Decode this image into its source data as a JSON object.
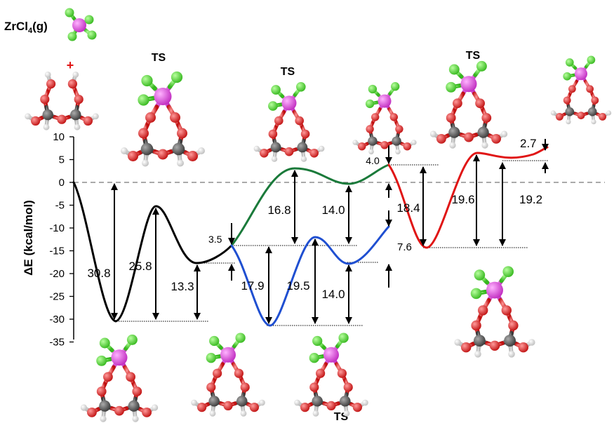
{
  "species_label": {
    "formula": "ZrCl",
    "subscript": "4",
    "phase": "(g)",
    "plus": "+"
  },
  "ts_labels": [
    "TS",
    "TS",
    "TS",
    "TS"
  ],
  "colors": {
    "black": "#000000",
    "green": "#1a7a3a",
    "blue": "#1f4fd1",
    "red": "#e01515",
    "zr": "#e642e6",
    "cl": "#54e03c",
    "o": "#e23030",
    "c": "#666666",
    "h": "#f0f0f0"
  },
  "chart_data": {
    "type": "line",
    "title": "",
    "xlabel": "",
    "ylabel": "ΔE (kcal/mol)",
    "ylim": [
      -35,
      10
    ],
    "yticks": [
      10,
      5,
      0,
      -5,
      -10,
      -15,
      -20,
      -25,
      -30,
      -35
    ],
    "zero_line": "dashed",
    "grid": false,
    "series": [
      {
        "color": "black",
        "points": [
          [
            0,
            0
          ],
          [
            1,
            -30.8
          ],
          [
            2,
            -5.0
          ],
          [
            3,
            -18.0
          ],
          [
            4,
            -14.5
          ]
        ]
      },
      {
        "color": "green",
        "points": [
          [
            4,
            -14.5
          ],
          [
            5,
            2.3
          ],
          [
            6,
            -0.2
          ],
          [
            7,
            3.6
          ]
        ]
      },
      {
        "color": "blue",
        "points": [
          [
            4,
            -14.5
          ],
          [
            5,
            -32.4
          ],
          [
            6,
            -12.9
          ],
          [
            7,
            -17.9
          ],
          [
            8,
            -10.3
          ]
        ]
      },
      {
        "color": "red",
        "points": [
          [
            8,
            3.6
          ],
          [
            9,
            -14.8
          ],
          [
            10,
            4.8
          ],
          [
            11,
            4.6
          ],
          [
            12,
            7.3
          ]
        ]
      }
    ],
    "annotations": [
      "30.8",
      "25.8",
      "13.3",
      "3.5",
      "17.9",
      "19.5",
      "14.0",
      "16.8",
      "14.0",
      "4.0",
      "7.6",
      "18.4",
      "19.6",
      "19.2",
      "2.7"
    ]
  }
}
